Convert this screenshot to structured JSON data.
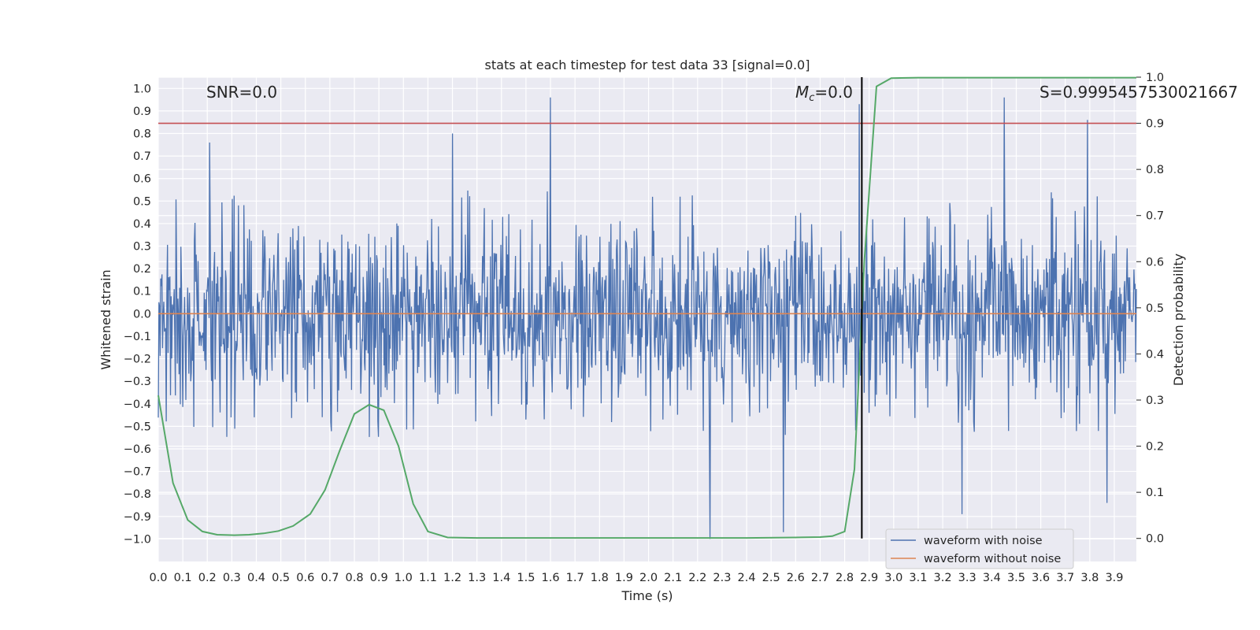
{
  "chart_data": {
    "type": "line",
    "title": "stats at each timestep for test data 33 [signal=0.0]",
    "xlabel": "Time (s)",
    "ylabel": "Whitened strain",
    "y2label": "Detection probability",
    "xlim": [
      0.0,
      3.99
    ],
    "ylim": [
      -1.1,
      1.05
    ],
    "y2lim": [
      -0.05,
      1.0
    ],
    "xticks": [
      "0.0",
      "0.1",
      "0.2",
      "0.3",
      "0.4",
      "0.5",
      "0.6",
      "0.7",
      "0.8",
      "0.9",
      "1.0",
      "1.1",
      "1.2",
      "1.3",
      "1.4",
      "1.5",
      "1.6",
      "1.7",
      "1.8",
      "1.9",
      "2.0",
      "2.1",
      "2.2",
      "2.3",
      "2.4",
      "2.5",
      "2.6",
      "2.7",
      "2.8",
      "2.9",
      "3.0",
      "3.1",
      "3.2",
      "3.3",
      "3.4",
      "3.5",
      "3.6",
      "3.7",
      "3.8",
      "3.9"
    ],
    "yticks": [
      "1.0",
      "0.9",
      "0.8",
      "0.7",
      "0.6",
      "0.5",
      "0.4",
      "0.3",
      "0.2",
      "0.1",
      "0.0",
      "−0.1",
      "−0.2",
      "−0.3",
      "−0.4",
      "−0.5",
      "−0.6",
      "−0.7",
      "−0.8",
      "−0.9",
      "−1.0"
    ],
    "y2ticks": [
      "1.0",
      "0.9",
      "0.8",
      "0.7",
      "0.6",
      "0.5",
      "0.4",
      "0.3",
      "0.2",
      "0.1",
      "0.0"
    ],
    "annotations": {
      "snr": "SNR=0.0",
      "mc_prefix": "M",
      "mc_sub": "c",
      "mc_value": "=0.0",
      "s": "S=0.9995457530021667"
    },
    "threshold_line": {
      "y2": 0.9,
      "color": "#c44e52"
    },
    "vertical_marker": {
      "x": 2.87,
      "color": "#000000"
    },
    "series": [
      {
        "name": "waveform with noise",
        "color": "#4c72b0",
        "kind": "noise",
        "envelope": 0.55,
        "peaks": [
          {
            "x": 0.21,
            "y": 0.76
          },
          {
            "x": 1.2,
            "y": 0.8
          },
          {
            "x": 1.6,
            "y": 0.96
          },
          {
            "x": 2.86,
            "y": 0.93
          },
          {
            "x": 3.45,
            "y": 0.96
          },
          {
            "x": 3.79,
            "y": 0.86
          },
          {
            "x": 2.25,
            "y": -1.0
          },
          {
            "x": 2.55,
            "y": -0.97
          },
          {
            "x": 3.28,
            "y": -0.89
          },
          {
            "x": 3.87,
            "y": -0.84
          }
        ]
      },
      {
        "name": "waveform without noise",
        "color": "#dd8452",
        "x": [
          0.0,
          3.99
        ],
        "y": [
          0.0,
          0.0
        ]
      },
      {
        "name": "detection probability",
        "color": "#55a868",
        "axis": "y2",
        "x": [
          0.0,
          0.06,
          0.12,
          0.18,
          0.24,
          0.31,
          0.37,
          0.43,
          0.49,
          0.55,
          0.62,
          0.68,
          0.74,
          0.8,
          0.86,
          0.92,
          0.98,
          1.04,
          1.1,
          1.18,
          1.3,
          1.5,
          1.8,
          2.1,
          2.4,
          2.6,
          2.7,
          2.75,
          2.8,
          2.84,
          2.88,
          2.93,
          2.99,
          3.1,
          3.4,
          3.7,
          3.99
        ],
        "y": [
          0.31,
          0.12,
          0.04,
          0.015,
          0.008,
          0.007,
          0.008,
          0.011,
          0.016,
          0.027,
          0.053,
          0.105,
          0.19,
          0.27,
          0.29,
          0.278,
          0.2,
          0.075,
          0.015,
          0.002,
          0.001,
          0.001,
          0.001,
          0.001,
          0.001,
          0.002,
          0.003,
          0.005,
          0.015,
          0.15,
          0.6,
          0.98,
          0.998,
          0.999,
          0.999,
          0.999,
          0.999
        ]
      }
    ],
    "legend": [
      "waveform with noise",
      "waveform without noise"
    ],
    "legend_position": "lower-right"
  }
}
